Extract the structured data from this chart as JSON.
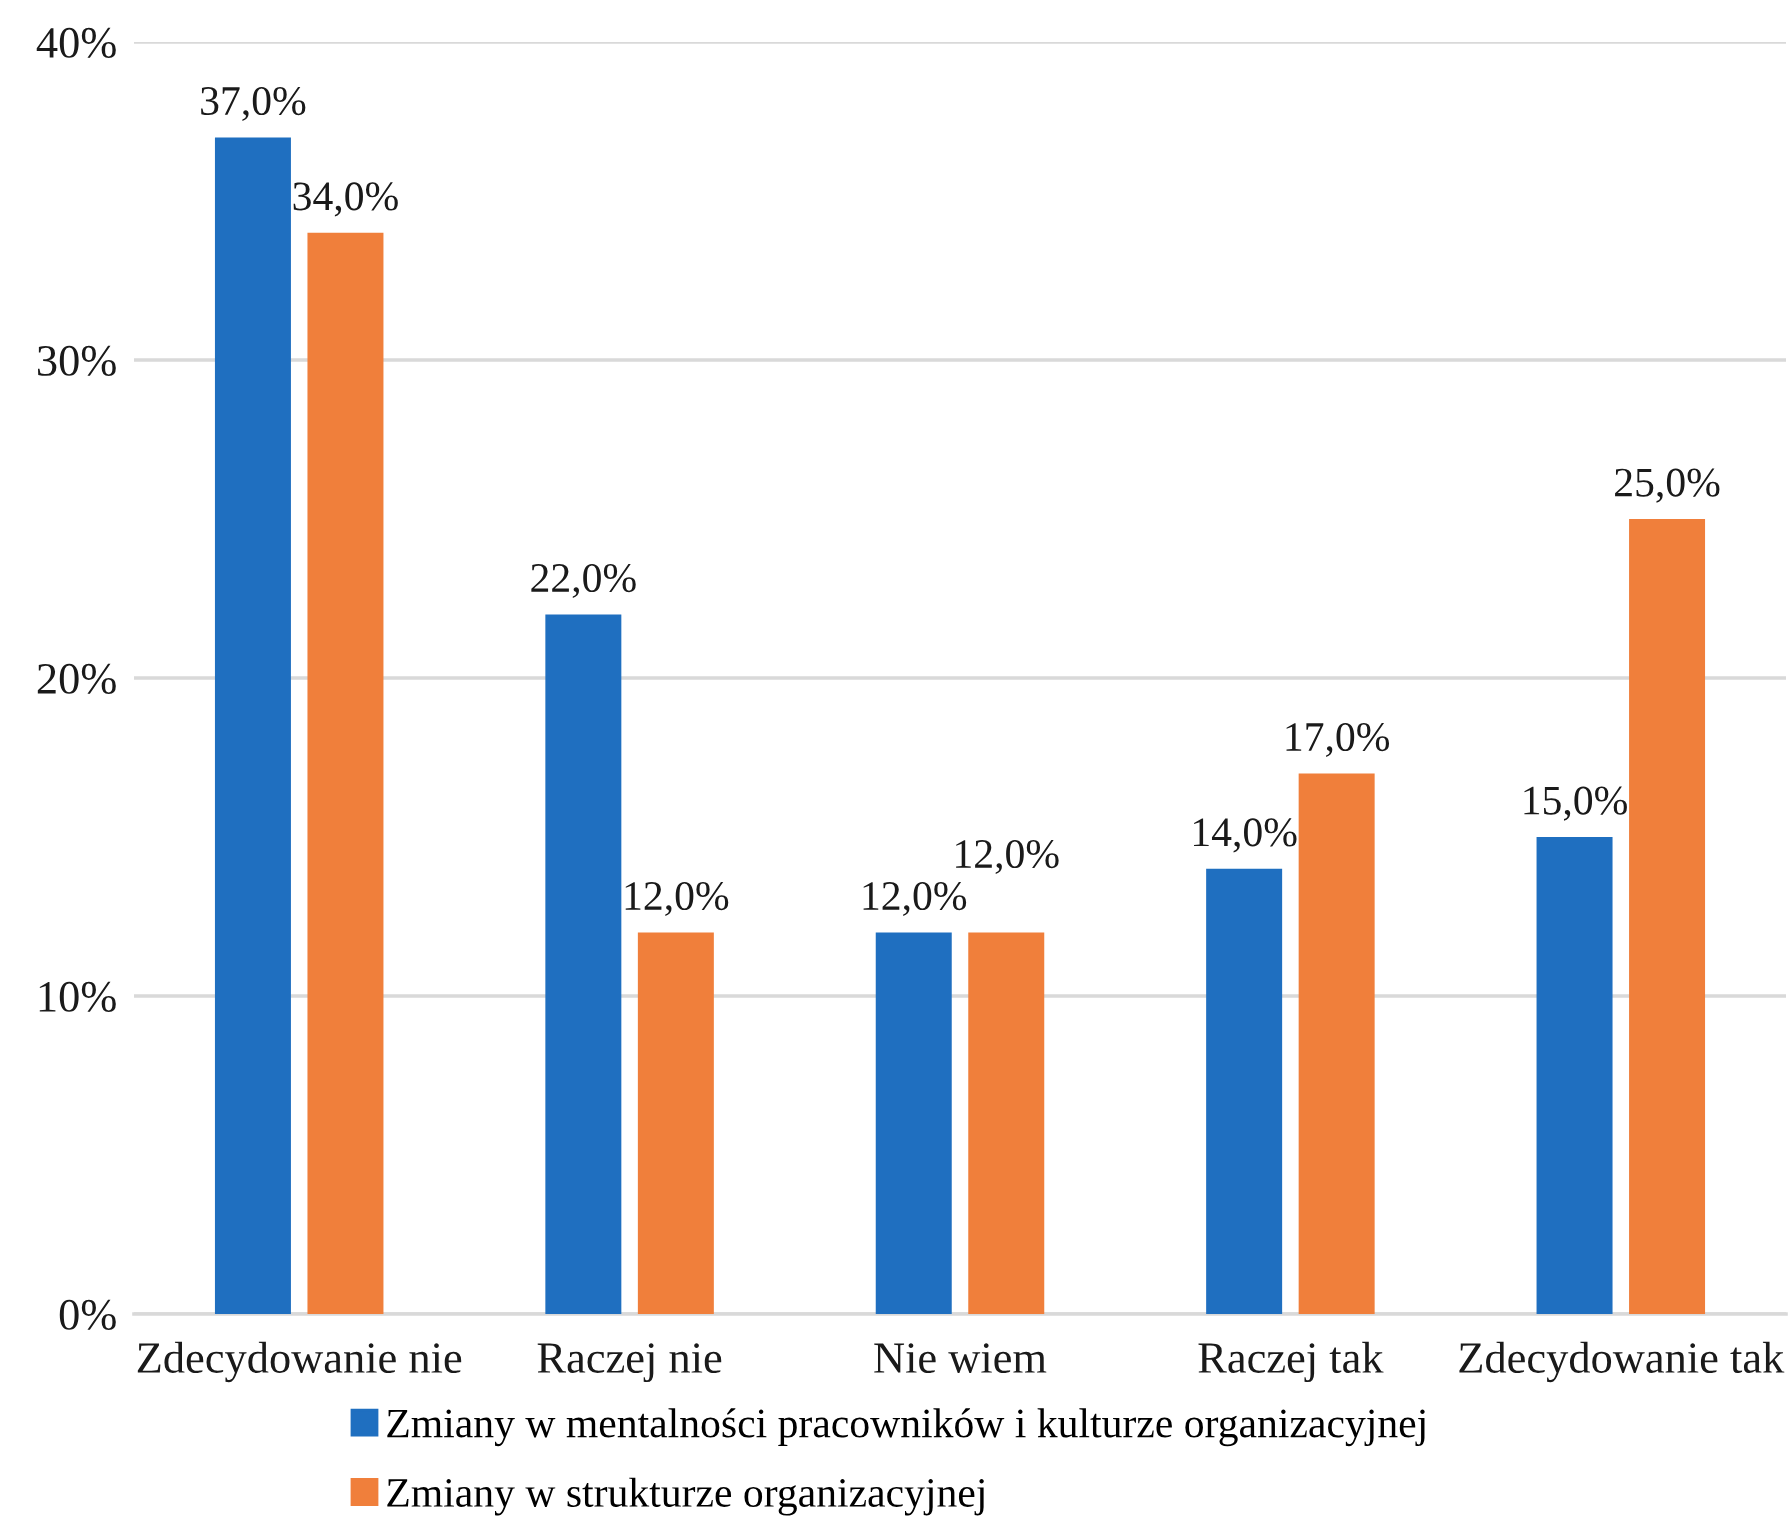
{
  "chart_data": {
    "type": "bar",
    "categories": [
      "Zdecydowanie nie",
      "Raczej nie",
      "Nie wiem",
      "Raczej tak",
      "Zdecydowanie tak"
    ],
    "series": [
      {
        "name": "Zmiany w mentalności pracowników i kulturze organizacyjnej",
        "color": "#1f6fc0",
        "values": [
          37,
          22,
          12,
          14,
          15
        ],
        "value_labels": [
          "37,0%",
          "22,0%",
          "12,0%",
          "14,0%",
          "15,0%"
        ]
      },
      {
        "name": "Zmiany w strukturze organizacyjnej",
        "color": "#f07f3b",
        "values": [
          34,
          12,
          12,
          17,
          25
        ],
        "value_labels": [
          "34,0%",
          "12,0%",
          "12,0%",
          "17,0%",
          "25,0%"
        ]
      }
    ],
    "ylim": [
      0,
      40
    ],
    "yticks": [
      {
        "value": 0,
        "label": "0%"
      },
      {
        "value": 10,
        "label": "10%"
      },
      {
        "value": 20,
        "label": "20%"
      },
      {
        "value": 30,
        "label": "30%"
      },
      {
        "value": 40,
        "label": "40%"
      }
    ],
    "grid": "y",
    "legend": "bottom"
  }
}
